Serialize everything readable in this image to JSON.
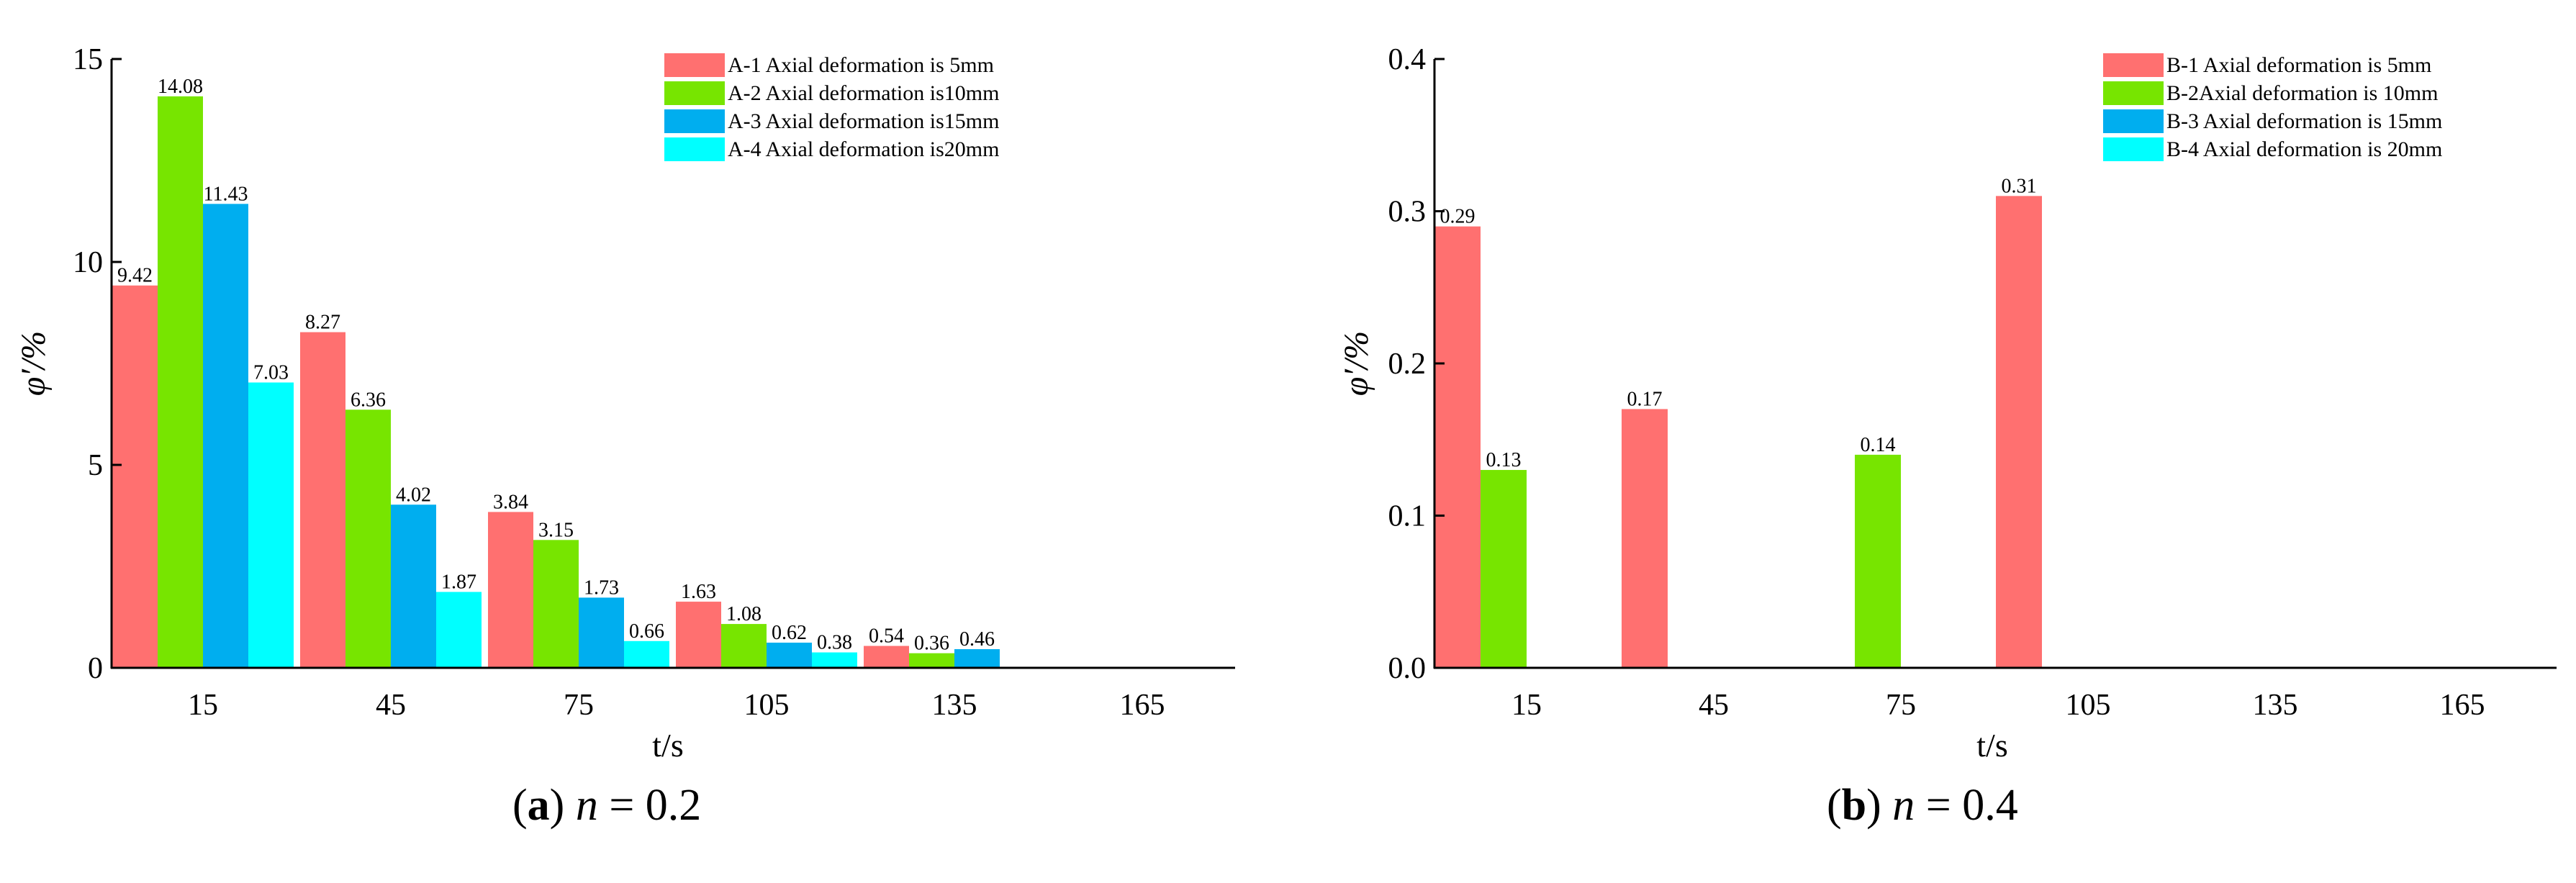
{
  "captions": [
    {
      "letter": "a",
      "var": "n",
      "rest": " = 0.2"
    },
    {
      "letter": "b",
      "var": "n",
      "rest": " = 0.4"
    }
  ],
  "chart_data": [
    {
      "type": "bar",
      "ylabel": "φ′/%",
      "xlabel": "t/s",
      "categories": [
        "15",
        "45",
        "75",
        "105",
        "135",
        "165"
      ],
      "ylim": [
        0,
        15
      ],
      "yticks": [
        "0",
        "5",
        "10",
        "15"
      ],
      "legend_position": "top-right",
      "colors": [
        "#FF7070",
        "#77E500",
        "#00AEEF",
        "#00FFFF"
      ],
      "series": [
        {
          "name": "A-1 Axial deformation is 5mm",
          "values": [
            9.42,
            8.27,
            3.84,
            1.63,
            0.54,
            null
          ],
          "labels": [
            "9.42",
            "8.27",
            "3.84",
            "1.63",
            "0.54",
            ""
          ]
        },
        {
          "name": "A-2 Axial deformation is10mm",
          "values": [
            14.08,
            6.36,
            3.15,
            1.08,
            0.36,
            null
          ],
          "labels": [
            "14.08",
            "6.36",
            "3.15",
            "1.08",
            "0.36",
            ""
          ]
        },
        {
          "name": "A-3 Axial deformation is15mm",
          "values": [
            11.43,
            4.02,
            1.73,
            0.62,
            0.46,
            null
          ],
          "labels": [
            "11.43",
            "4.02",
            "1.73",
            "0.62",
            "0.46",
            ""
          ]
        },
        {
          "name": "A-4 Axial deformation is20mm",
          "values": [
            7.03,
            1.87,
            0.66,
            0.38,
            null,
            null
          ],
          "labels": [
            "7.03",
            "1.87",
            "0.66",
            "0.38",
            "",
            ""
          ]
        }
      ]
    },
    {
      "type": "bar",
      "ylabel": "φ′/%",
      "xlabel": "t/s",
      "categories": [
        "15",
        "45",
        "75",
        "105",
        "135",
        "165"
      ],
      "ylim": [
        0,
        0.4
      ],
      "yticks": [
        "0.0",
        "0.1",
        "0.2",
        "0.3",
        "0.4"
      ],
      "legend_position": "top-right",
      "colors": [
        "#FF7070",
        "#77E500",
        "#00AEEF",
        "#00FFFF"
      ],
      "series": [
        {
          "name": "B-1 Axial deformation is 5mm",
          "values": [
            0.29,
            0.17,
            null,
            0.31,
            null,
            null
          ],
          "labels": [
            "0.29",
            "0.17",
            "",
            "0.31",
            "",
            ""
          ]
        },
        {
          "name": "B-2Axial deformation is 10mm",
          "values": [
            0.13,
            null,
            0.14,
            null,
            null,
            null
          ],
          "labels": [
            "0.13",
            "",
            "0.14",
            "",
            "",
            ""
          ]
        },
        {
          "name": "B-3 Axial deformation is 15mm",
          "values": [
            null,
            null,
            null,
            null,
            null,
            null
          ],
          "labels": [
            "",
            "",
            "",
            "",
            "",
            ""
          ]
        },
        {
          "name": "B-4 Axial deformation is 20mm",
          "values": [
            null,
            null,
            null,
            null,
            null,
            null
          ],
          "labels": [
            "",
            "",
            "",
            "",
            "",
            ""
          ]
        }
      ]
    }
  ]
}
